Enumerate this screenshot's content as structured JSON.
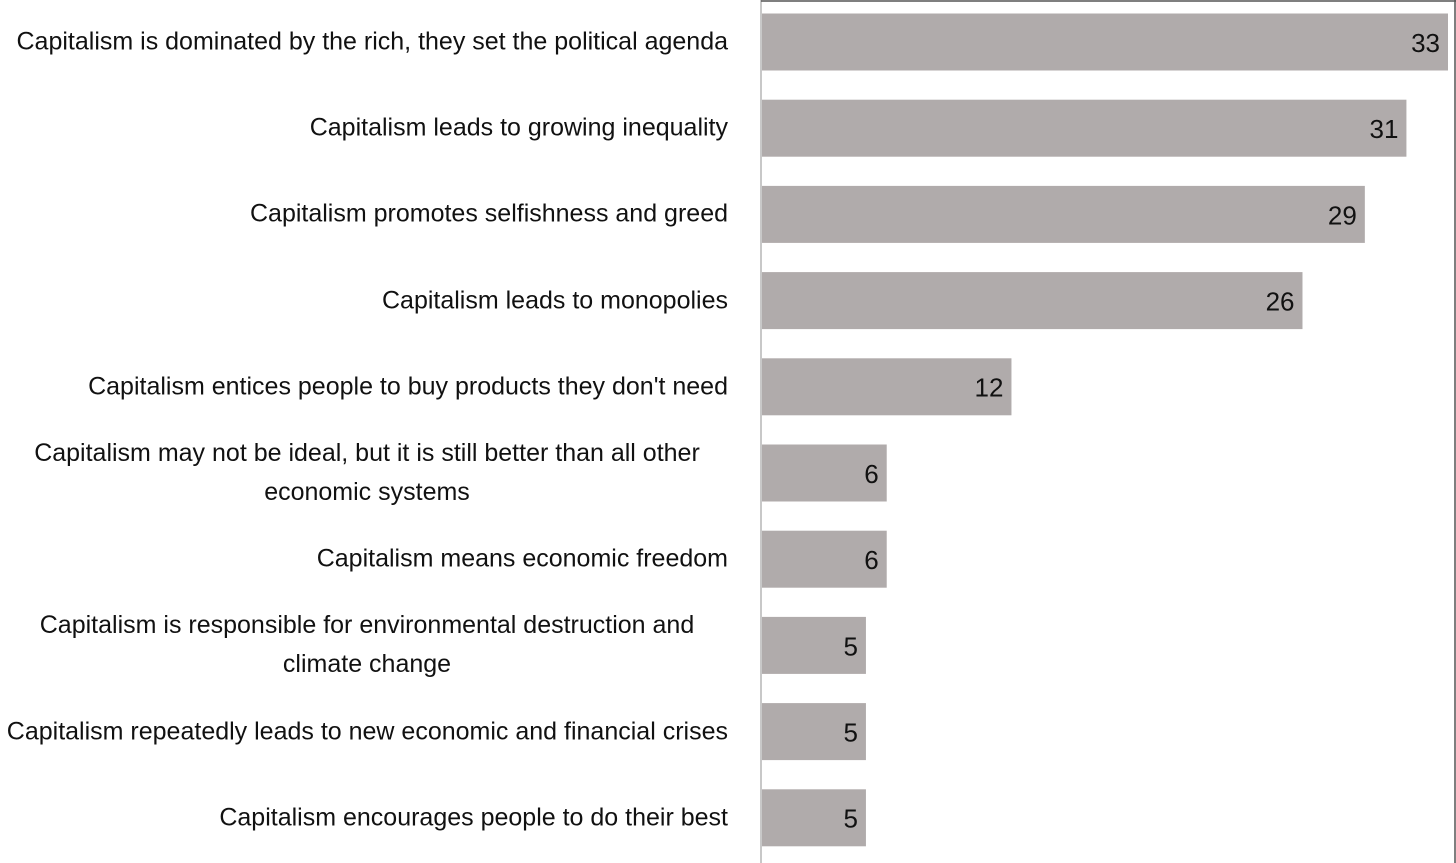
{
  "chart_data": {
    "type": "bar",
    "orientation": "horizontal",
    "color": "#b0abab",
    "categories": [
      "Capitalism is dominated by the rich, they set the political agenda",
      "Capitalism leads to growing inequality",
      "Capitalism promotes selfishness and greed",
      "Capitalism leads to monopolies",
      "Capitalism entices people to buy products they don't need",
      "Capitalism may not be ideal, but it is still better than all other economic systems",
      "Capitalism means economic freedom",
      "Capitalism is responsible for environmental destruction and climate change",
      "Capitalism repeatedly leads to new economic and financial crises",
      "Capitalism encourages people to do their best"
    ],
    "values": [
      33,
      31,
      29,
      26,
      12,
      6,
      6,
      5,
      5,
      5
    ]
  }
}
